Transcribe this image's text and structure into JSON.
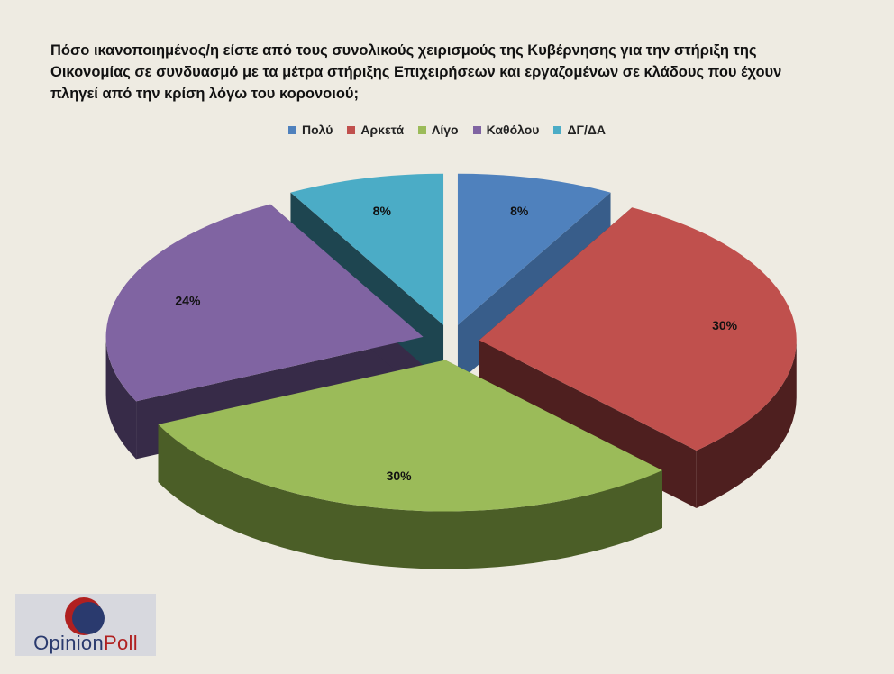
{
  "chart_data": {
    "type": "pie",
    "title_lines": [
      "Πόσο ικανοποιημένος/η  είστε από τους συνολικούς χειρισμούς της Κυβέρνησης για την στήριξη της",
      "Οικονομίας σε συνδυασμό  με τα μέτρα στήριξης Επιχειρήσεων και εργαζομένων σε κλάδους που έχουν",
      "πληγεί από την κρίση λόγω του κορονοιού;"
    ],
    "legend_position": "top",
    "exploded": true,
    "three_d": true,
    "slices": [
      {
        "label": "Πολύ",
        "value": 8,
        "value_label": "8%",
        "color": "#4f81bd",
        "side_color": "#385d8a"
      },
      {
        "label": "Αρκετά",
        "value": 30,
        "value_label": "30%",
        "color": "#c0504d",
        "side_color": "#4e1f1f"
      },
      {
        "label": "Λίγο",
        "value": 30,
        "value_label": "30%",
        "color": "#9bbb59",
        "side_color": "#4b5e27"
      },
      {
        "label": "Καθόλου",
        "value": 24,
        "value_label": "24%",
        "color": "#8064a2",
        "side_color": "#372b48"
      },
      {
        "label": "ΔΓ/ΔΑ",
        "value": 8,
        "value_label": "8%",
        "color": "#4bacc6",
        "side_color": "#1e4550"
      }
    ]
  },
  "logo": {
    "text_main": "Opinion",
    "text_accent": "Poll",
    "colors": {
      "circle_red": "#b02020",
      "circle_navy": "#2a3a6e"
    }
  }
}
